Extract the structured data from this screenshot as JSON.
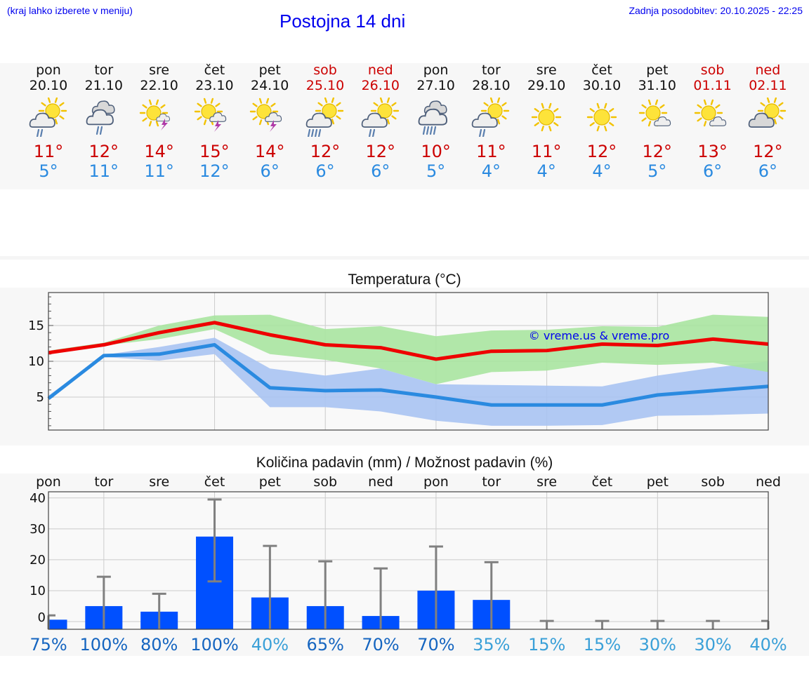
{
  "header": {
    "note": "(kraj lahko izberete v meniju)",
    "title": "Postojna 14 dni",
    "updated": "Zadnja posodobitev: 20.10.2025 - 22:25"
  },
  "days": [
    {
      "name": "pon",
      "date": "20.10",
      "weekend": false,
      "icon": "sun-cloud-rain-icon",
      "tmax": "11°",
      "tmin": "5°"
    },
    {
      "name": "tor",
      "date": "21.10",
      "weekend": false,
      "icon": "cloud-rain-icon",
      "tmax": "12°",
      "tmin": "11°"
    },
    {
      "name": "sre",
      "date": "22.10",
      "weekend": false,
      "icon": "sun-storm-icon",
      "tmax": "14°",
      "tmin": "11°"
    },
    {
      "name": "čet",
      "date": "23.10",
      "weekend": false,
      "icon": "sun-cloud-storm-icon",
      "tmax": "15°",
      "tmin": "12°"
    },
    {
      "name": "pet",
      "date": "24.10",
      "weekend": false,
      "icon": "sun-cloud-storm-icon",
      "tmax": "14°",
      "tmin": "6°"
    },
    {
      "name": "sob",
      "date": "25.10",
      "weekend": true,
      "icon": "sun-cloud-heavy-rain-icon",
      "tmax": "12°",
      "tmin": "6°"
    },
    {
      "name": "ned",
      "date": "26.10",
      "weekend": true,
      "icon": "sun-cloud-rain-icon",
      "tmax": "12°",
      "tmin": "6°"
    },
    {
      "name": "pon",
      "date": "27.10",
      "weekend": false,
      "icon": "cloud-heavy-rain-icon",
      "tmax": "10°",
      "tmin": "5°"
    },
    {
      "name": "tor",
      "date": "28.10",
      "weekend": false,
      "icon": "sun-cloud-rain-icon",
      "tmax": "11°",
      "tmin": "4°"
    },
    {
      "name": "sre",
      "date": "29.10",
      "weekend": false,
      "icon": "sun-icon",
      "tmax": "11°",
      "tmin": "4°"
    },
    {
      "name": "čet",
      "date": "30.10",
      "weekend": false,
      "icon": "sun-icon",
      "tmax": "12°",
      "tmin": "4°"
    },
    {
      "name": "pet",
      "date": "31.10",
      "weekend": false,
      "icon": "sun-small-cloud-icon",
      "tmax": "12°",
      "tmin": "5°"
    },
    {
      "name": "sob",
      "date": "01.11",
      "weekend": true,
      "icon": "sun-small-cloud-icon",
      "tmax": "13°",
      "tmin": "6°"
    },
    {
      "name": "ned",
      "date": "02.11",
      "weekend": true,
      "icon": "sun-behind-cloud-icon",
      "tmax": "12°",
      "tmin": "6°"
    }
  ],
  "colors": {
    "max_line": "#ee0000",
    "min_line": "#2a8ae0",
    "max_band": "#a8e4a0",
    "min_band": "#a9c3f2",
    "bar": "#0050ff",
    "error": "#808080",
    "prob_dark": "#1565c0",
    "prob_light": "#3aa0d8"
  },
  "chart_data": [
    {
      "type": "line",
      "title": "Temperatura (°C)",
      "watermark": "© vreme.us & vreme.pro",
      "y_ticks": [
        "15",
        "10",
        "5"
      ],
      "y_tick_values": [
        15,
        10,
        5
      ],
      "ylim": [
        0.4,
        19.6
      ],
      "x": [
        0,
        1,
        2,
        3,
        4,
        5,
        6,
        7,
        8,
        9,
        10,
        11,
        12,
        13
      ],
      "series": [
        {
          "name": "max",
          "values": [
            11.2,
            12.3,
            14.0,
            15.4,
            13.7,
            12.3,
            11.9,
            10.3,
            11.4,
            11.5,
            12.4,
            12.2,
            13.1,
            12.4
          ],
          "band_low": [
            11.5,
            12.2,
            13.1,
            14.5,
            11.0,
            10.2,
            9.0,
            6.8,
            8.5,
            8.7,
            9.8,
            9.5,
            9.8,
            8.5
          ],
          "band_high": [
            11.5,
            12.6,
            15.0,
            16.4,
            16.5,
            14.5,
            14.9,
            13.5,
            14.3,
            14.4,
            14.9,
            14.8,
            16.5,
            16.2
          ]
        },
        {
          "name": "min",
          "values": [
            4.8,
            10.8,
            11.0,
            12.3,
            6.3,
            5.9,
            6.0,
            5.0,
            3.9,
            3.9,
            3.9,
            5.3,
            5.9,
            6.5
          ],
          "band_low": [
            4.8,
            10.6,
            10.1,
            11.0,
            3.6,
            3.6,
            3.0,
            1.7,
            1.0,
            1.0,
            1.1,
            2.4,
            2.5,
            2.7
          ],
          "band_high": [
            5.2,
            10.9,
            12.0,
            13.3,
            9.0,
            8.0,
            9.0,
            6.8,
            6.7,
            6.6,
            6.5,
            8.0,
            9.1,
            10.0
          ]
        }
      ]
    },
    {
      "type": "bar",
      "title": "Količina padavin (mm) / Možnost padavin (%)",
      "categories": [
        "pon",
        "tor",
        "sre",
        "čet",
        "pet",
        "sob",
        "ned",
        "pon",
        "tor",
        "sre",
        "čet",
        "pet",
        "sob",
        "ned"
      ],
      "values": [
        0.6,
        5.0,
        3.2,
        27.5,
        7.8,
        5.0,
        1.8,
        10.0,
        7.0,
        0,
        0,
        0,
        0,
        0
      ],
      "err_low": [
        0,
        0,
        0,
        13,
        0,
        0,
        0,
        0,
        0,
        0,
        0,
        0,
        0,
        0
      ],
      "err_high": [
        2,
        14.5,
        9,
        39.5,
        24.5,
        19.5,
        17.2,
        24.3,
        19.2,
        0.2,
        0.2,
        0.2,
        0.2,
        0.2
      ],
      "y_ticks": [
        "40",
        "30",
        "20",
        "10",
        "0"
      ],
      "y_tick_values": [
        40,
        30,
        20,
        10,
        0
      ],
      "ylim": [
        -2.5,
        42
      ],
      "probability": [
        "75%",
        "100%",
        "80%",
        "100%",
        "40%",
        "65%",
        "70%",
        "70%",
        "35%",
        "15%",
        "15%",
        "30%",
        "30%",
        "40%"
      ]
    }
  ]
}
